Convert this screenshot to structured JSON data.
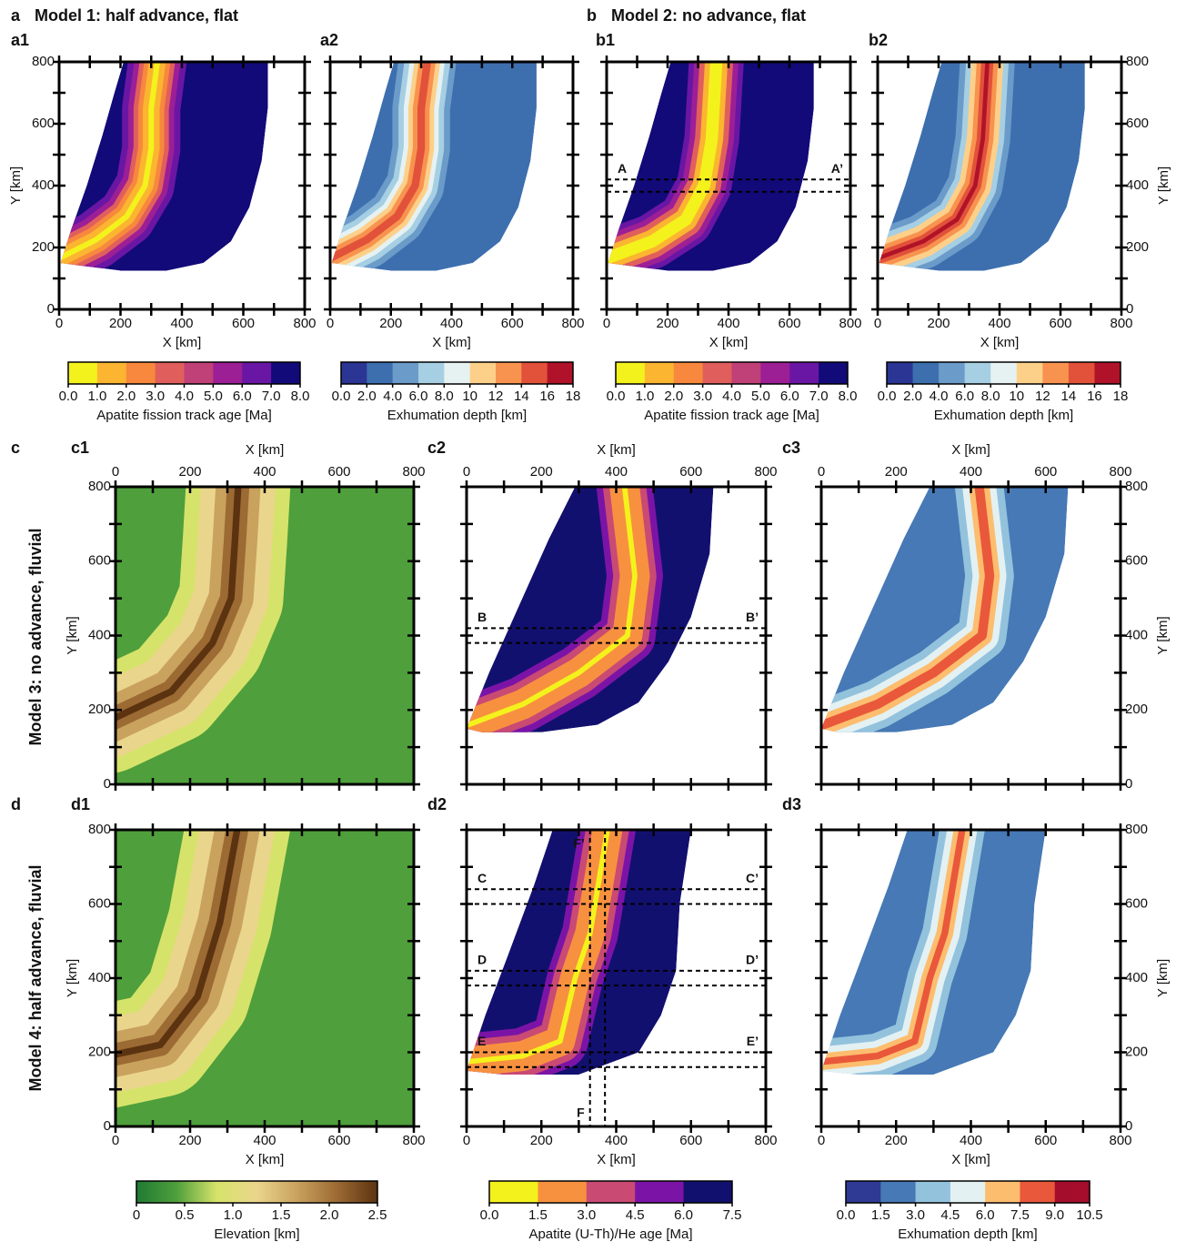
{
  "figure": {
    "ticks": [
      0,
      200,
      400,
      600,
      800
    ],
    "xlabel": "X [km]",
    "ylabel": "Y [km]",
    "rows": [
      {
        "letter": "a",
        "title": "Model 1: half advance, flat"
      },
      {
        "letter": "b",
        "title": "Model 2: no advance, flat"
      },
      {
        "letter": "c",
        "title": "Model 3: no advance, fluvial"
      },
      {
        "letter": "d",
        "title": "Model 4: half advance, fluvial"
      }
    ],
    "panels": [
      {
        "label": "a1"
      },
      {
        "label": "a2"
      },
      {
        "label": "b1",
        "profiles": [
          {
            "start": "A",
            "end": "A’",
            "y": [
              380,
              420
            ]
          }
        ]
      },
      {
        "label": "b2"
      },
      {
        "label": "c1"
      },
      {
        "label": "c2",
        "profiles": [
          {
            "start": "B",
            "end": "B’",
            "y": [
              380,
              420
            ]
          }
        ]
      },
      {
        "label": "c3"
      },
      {
        "label": "d1"
      },
      {
        "label": "d2",
        "profiles": [
          {
            "start": "C",
            "end": "C’",
            "y": [
              600,
              640
            ]
          },
          {
            "start": "D",
            "end": "D’",
            "y": [
              380,
              420
            ]
          },
          {
            "start": "E",
            "end": "E’",
            "y": [
              160,
              200
            ]
          },
          {
            "start": "F",
            "end": "F’",
            "x": [
              330,
              370
            ]
          }
        ]
      },
      {
        "label": "d3"
      }
    ],
    "colorbars": [
      {
        "title": "Apatite fission track age [Ma]",
        "colors": [
          "#f4f21c",
          "#fbb531",
          "#f7883d",
          "#e05f5c",
          "#c04177",
          "#9c1f96",
          "#6a16a4",
          "#120a78"
        ],
        "ticks": [
          {
            "value": 0,
            "label": "0.0"
          },
          {
            "value": 1,
            "label": "1.0"
          },
          {
            "value": 2,
            "label": "2.0"
          },
          {
            "value": 3,
            "label": "3.0"
          },
          {
            "value": 4,
            "label": "4.0"
          },
          {
            "value": 5,
            "label": "5.0"
          },
          {
            "value": 6,
            "label": "6.0"
          },
          {
            "value": 7,
            "label": "7.0"
          },
          {
            "value": 8,
            "label": "8.0"
          }
        ]
      },
      {
        "title": "Exhumation depth [km]",
        "colors": [
          "#2b3594",
          "#3d6faf",
          "#6b9bc9",
          "#a6cfe3",
          "#e6f2f2",
          "#fdd08a",
          "#f8934f",
          "#e2513a",
          "#b01329"
        ],
        "ticks": [
          {
            "value": 0,
            "label": "0.0"
          },
          {
            "value": 2,
            "label": "2.0"
          },
          {
            "value": 4,
            "label": "4.0"
          },
          {
            "value": 6,
            "label": "6.0"
          },
          {
            "value": 8,
            "label": "8.0"
          },
          10,
          12,
          14,
          16,
          18
        ]
      },
      {
        "title": "Apatite fission track age [Ma]",
        "colors": [
          "#f4f21c",
          "#fbb531",
          "#f7883d",
          "#e05f5c",
          "#c04177",
          "#9c1f96",
          "#6a16a4",
          "#120a78"
        ],
        "ticks": [
          {
            "value": 0,
            "label": "0.0"
          },
          {
            "value": 1,
            "label": "1.0"
          },
          {
            "value": 2,
            "label": "2.0"
          },
          {
            "value": 3,
            "label": "3.0"
          },
          {
            "value": 4,
            "label": "4.0"
          },
          {
            "value": 5,
            "label": "5.0"
          },
          {
            "value": 6,
            "label": "6.0"
          },
          {
            "value": 7,
            "label": "7.0"
          },
          {
            "value": 8,
            "label": "8.0"
          }
        ]
      },
      {
        "title": "Exhumation depth [km]",
        "colors": [
          "#2b3594",
          "#3d6faf",
          "#6b9bc9",
          "#a6cfe3",
          "#e6f2f2",
          "#fdd08a",
          "#f8934f",
          "#e2513a",
          "#b01329"
        ],
        "ticks": [
          {
            "value": 0,
            "label": "0.0"
          },
          {
            "value": 2,
            "label": "2.0"
          },
          {
            "value": 4,
            "label": "4.0"
          },
          {
            "value": 6,
            "label": "6.0"
          },
          {
            "value": 8,
            "label": "8.0"
          },
          10,
          12,
          14,
          16,
          18
        ]
      },
      {
        "title": "Elevation [km]",
        "gradient": true,
        "colors": [
          "#1f7a33",
          "#4f9f3c",
          "#d6e36a",
          "#ead58c",
          "#c9a25e",
          "#9c6a33",
          "#5c3310"
        ],
        "ticks": [
          0,
          0.5,
          {
            "value": 1,
            "label": "1.0"
          },
          1.5,
          {
            "value": 2,
            "label": "2.0"
          },
          2.5
        ]
      },
      {
        "title": "Apatite (U-Th)/He age [Ma]",
        "colors": [
          "#f4f21c",
          "#f7913f",
          "#c94a73",
          "#7b14a6",
          "#12106e"
        ],
        "ticks": [
          {
            "value": 0,
            "label": "0.0"
          },
          1.5,
          {
            "value": 3,
            "label": "3.0"
          },
          4.5,
          {
            "value": 6,
            "label": "6.0"
          },
          7.5
        ]
      },
      {
        "title": "Exhumation depth [km]",
        "colors": [
          "#2e3a94",
          "#4679b5",
          "#93c2dd",
          "#e3f1f3",
          "#fdbd6e",
          "#e9583a",
          "#a40d2b"
        ],
        "ticks": [
          {
            "value": 0,
            "label": "0.0"
          },
          1.5,
          {
            "value": 3,
            "label": "3.0"
          },
          4.5,
          {
            "value": 6,
            "label": "6.0"
          },
          7.5,
          {
            "value": 9,
            "label": "9.0"
          },
          10.5
        ]
      }
    ]
  }
}
